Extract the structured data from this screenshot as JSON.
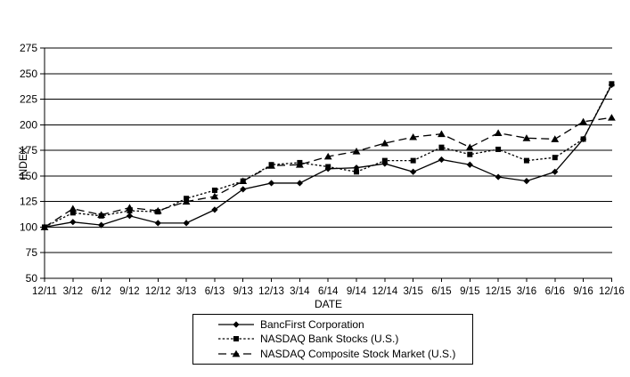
{
  "chart_data": {
    "type": "line",
    "title": "",
    "xlabel": "DATE",
    "ylabel": "INDEX",
    "ylim": [
      50,
      275
    ],
    "yticks": [
      50,
      75,
      100,
      125,
      150,
      175,
      200,
      225,
      250,
      275
    ],
    "categories": [
      "12/11",
      "3/12",
      "6/12",
      "9/12",
      "12/12",
      "3/13",
      "6/13",
      "9/13",
      "12/13",
      "3/14",
      "6/14",
      "9/14",
      "12/14",
      "3/15",
      "6/15",
      "9/15",
      "12/15",
      "3/16",
      "6/16",
      "9/16",
      "12/16"
    ],
    "series": [
      {
        "name": "BancFirst Corporation",
        "marker": "diamond",
        "line_style": "solid",
        "values": [
          100,
          105,
          102,
          111,
          104,
          104,
          117,
          137,
          143,
          143,
          157,
          158,
          162,
          154,
          166,
          161,
          149,
          145,
          154,
          186,
          239
        ]
      },
      {
        "name": "NASDAQ Bank Stocks (U.S.)",
        "marker": "square",
        "line_style": "dotted",
        "values": [
          100,
          114,
          111,
          116,
          115,
          128,
          136,
          145,
          161,
          163,
          159,
          154,
          165,
          165,
          178,
          171,
          176,
          165,
          168,
          186,
          240
        ]
      },
      {
        "name": "NASDAQ Composite Stock Market (U.S.)",
        "marker": "triangle",
        "line_style": "longdash",
        "values": [
          100,
          118,
          112,
          119,
          116,
          125,
          130,
          145,
          160,
          161,
          169,
          174,
          182,
          188,
          191,
          178,
          192,
          187,
          186,
          203,
          207
        ]
      }
    ],
    "grid": "horizontal",
    "legend_position": "bottom-center",
    "colors": {
      "series": "#000000",
      "background": "#ffffff",
      "text": "#000000"
    }
  }
}
